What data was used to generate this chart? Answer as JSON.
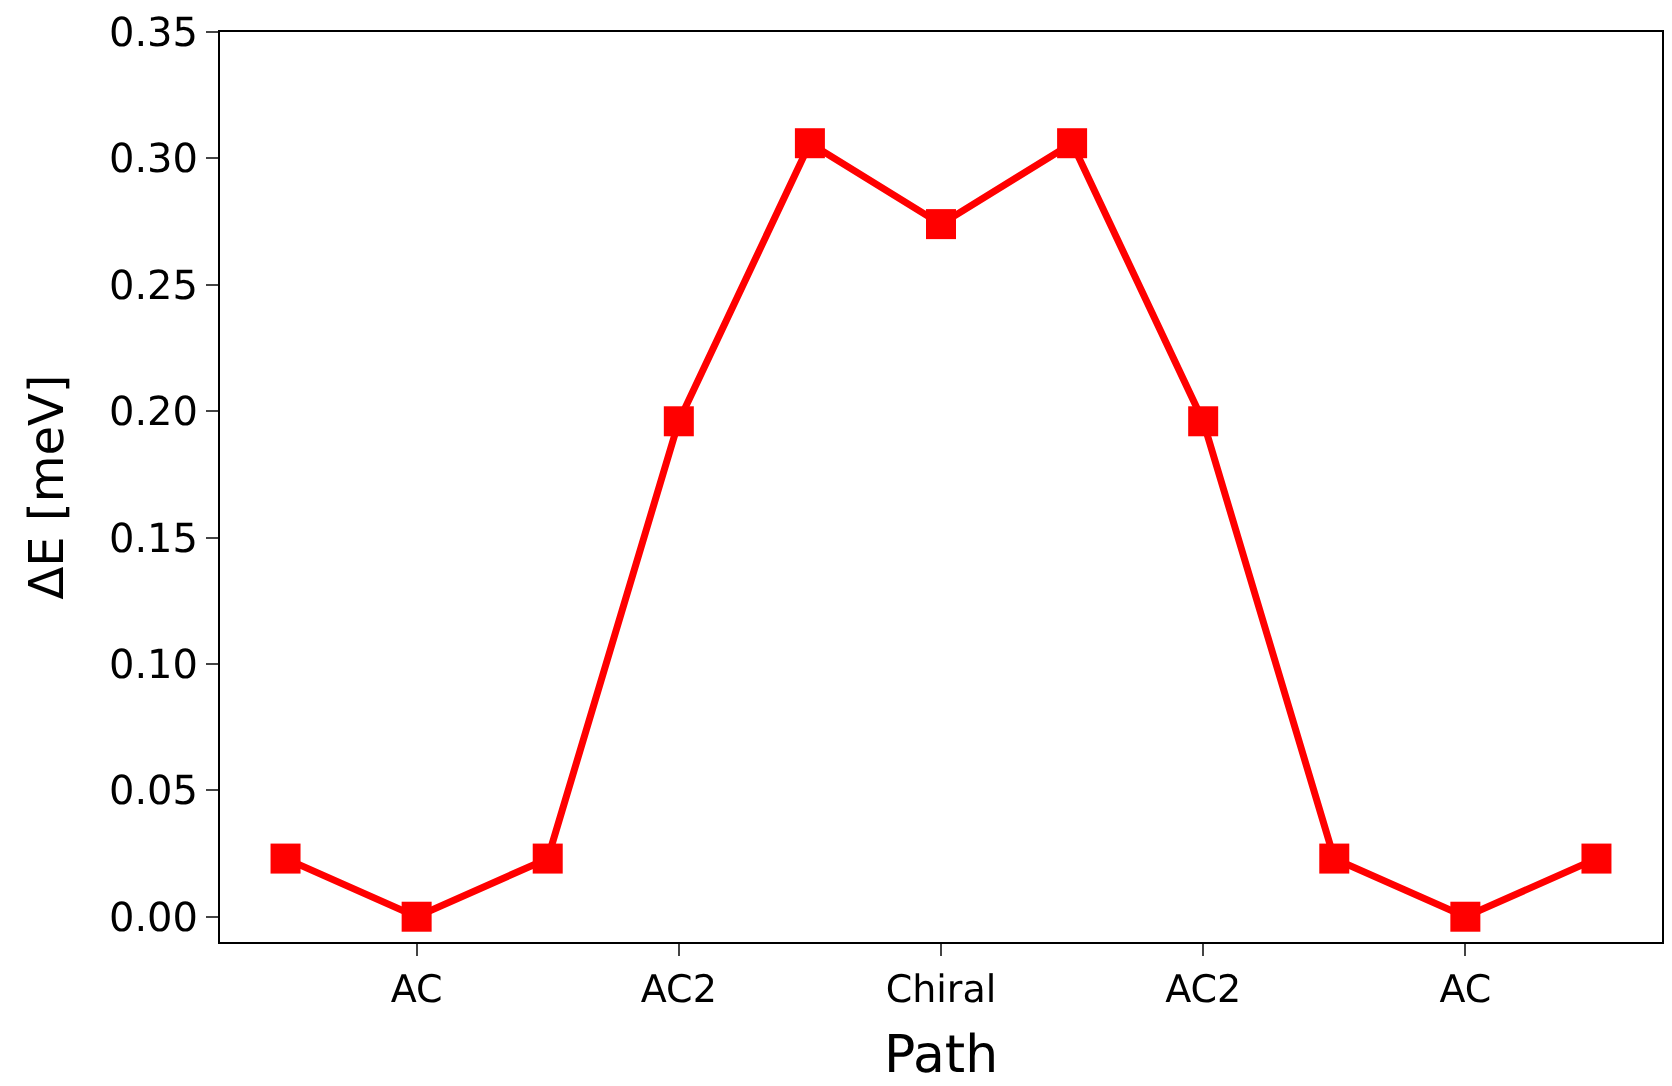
{
  "chart_data": {
    "type": "line",
    "xlabel": "Path",
    "ylabel": "ΔE [meV]",
    "categories": [
      null,
      "AC",
      null,
      "AC2",
      null,
      "Chiral",
      null,
      "AC2",
      null,
      "AC",
      null
    ],
    "series": [
      {
        "color": "#ff0000",
        "values": [
          0.023,
          0.0,
          0.023,
          0.196,
          0.306,
          0.274,
          0.306,
          0.196,
          0.023,
          0.0,
          0.023
        ]
      }
    ],
    "ylim": [
      -0.01,
      0.35
    ],
    "yticks": [
      {
        "value": 0,
        "label": "0.00"
      },
      {
        "value": 0.05,
        "label": "0.05"
      },
      {
        "value": 0.1,
        "label": "0.10"
      },
      {
        "value": 0.15,
        "label": "0.15"
      },
      {
        "value": 0.2,
        "label": "0.20"
      },
      {
        "value": 0.25,
        "label": "0.25"
      },
      {
        "value": 0.3,
        "label": "0.30"
      },
      {
        "value": 0.35,
        "label": "0.35"
      }
    ],
    "marker": "square",
    "line_style": "solid",
    "legend": false
  }
}
